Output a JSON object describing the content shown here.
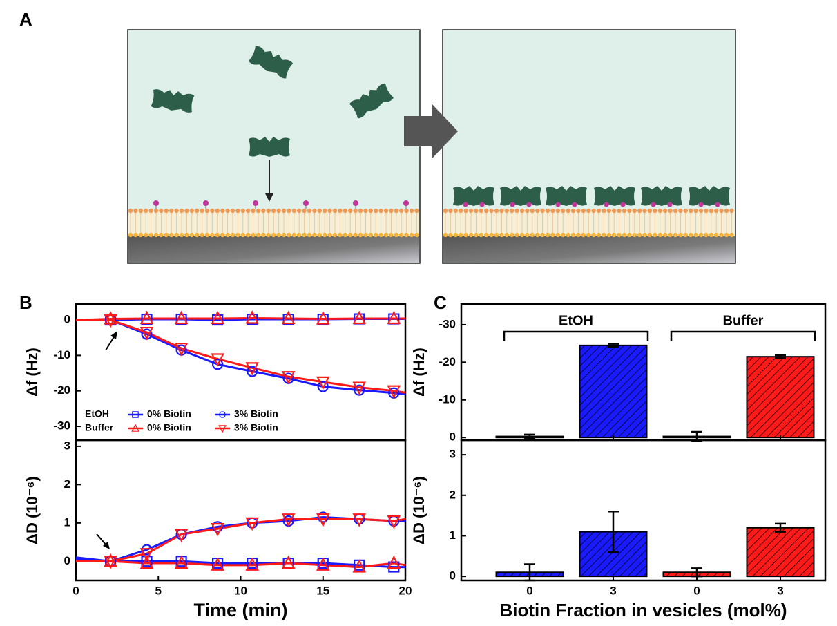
{
  "panel_labels": [
    "A",
    "B",
    "C"
  ],
  "chart_data": [
    {
      "type": "line",
      "ylabel": "Δf (Hz)",
      "xlim": [
        0,
        20
      ],
      "ylim": [
        -33.9,
        4.5
      ],
      "yticks": [
        0,
        -10,
        -20,
        -30
      ],
      "x": [
        0,
        2.1,
        4.3,
        6.4,
        8.6,
        10.7,
        12.9,
        15,
        17.2,
        19.3,
        20
      ],
      "series": [
        {
          "name": "0% Biotin",
          "group": "EtOH",
          "color": "#1a1aff",
          "marker": "square",
          "values": [
            0,
            0,
            0.2,
            0.2,
            0,
            0.2,
            0.2,
            0.2,
            0.3,
            0.3,
            0.3
          ]
        },
        {
          "name": "3% Biotin",
          "group": "EtOH",
          "color": "#1a1aff",
          "marker": "circle",
          "values": [
            0,
            0,
            -4,
            -8.5,
            -12.5,
            -14.5,
            -16.5,
            -18.8,
            -19.8,
            -20.6,
            -21
          ]
        },
        {
          "name": "0% Biotin",
          "group": "Buffer",
          "color": "#ff1a1a",
          "marker": "triangle-up",
          "values": [
            0,
            0.3,
            0.4,
            0.4,
            0.4,
            0.5,
            0.4,
            0.3,
            0.4,
            0.4,
            0.4
          ]
        },
        {
          "name": "3% Biotin",
          "group": "Buffer",
          "color": "#ff1a1a",
          "marker": "triangle-down",
          "values": [
            0,
            0,
            -3.5,
            -8,
            -11,
            -13.5,
            -16,
            -17.5,
            -19,
            -20,
            -20.5
          ]
        }
      ]
    },
    {
      "type": "line",
      "ylabel": "ΔD (10⁻⁶)",
      "xlabel": "Time (min)",
      "xlim": [
        0,
        20
      ],
      "xticks": [
        0,
        5,
        10,
        15,
        20
      ],
      "ylim": [
        -0.5,
        3.16
      ],
      "yticks": [
        0,
        1,
        2,
        3
      ],
      "x": [
        0,
        2.1,
        4.3,
        6.4,
        8.6,
        10.7,
        12.9,
        15,
        17.2,
        19.3,
        20
      ],
      "series": [
        {
          "name": "0% Biotin",
          "group": "EtOH",
          "color": "#1a1aff",
          "marker": "square",
          "values": [
            0.1,
            0,
            0,
            0,
            -0.05,
            -0.05,
            -0.05,
            -0.05,
            -0.1,
            -0.15,
            -0.15
          ]
        },
        {
          "name": "3% Biotin",
          "group": "EtOH",
          "color": "#1a1aff",
          "marker": "circle",
          "values": [
            0.05,
            0,
            0.3,
            0.7,
            0.9,
            1.0,
            1.05,
            1.15,
            1.1,
            1.05,
            1.05
          ]
        },
        {
          "name": "0% Biotin",
          "group": "Buffer",
          "color": "#ff1a1a",
          "marker": "triangle-up",
          "values": [
            0,
            0,
            -0.05,
            -0.05,
            -0.1,
            -0.1,
            -0.05,
            -0.1,
            -0.15,
            -0.05,
            -0.1
          ]
        },
        {
          "name": "3% Biotin",
          "group": "Buffer",
          "color": "#ff1a1a",
          "marker": "triangle-down",
          "values": [
            0,
            0,
            0.2,
            0.7,
            0.85,
            1.0,
            1.1,
            1.1,
            1.1,
            1.05,
            1.1
          ]
        }
      ]
    },
    {
      "type": "bar",
      "ylabel": "Δf (Hz)",
      "ylim": [
        0.7,
        -35.5
      ],
      "yticks": [
        0,
        -10,
        -20,
        -30
      ],
      "groups": [
        "EtOH",
        "Buffer"
      ],
      "values": [
        -0.3,
        -24.5,
        -0.3,
        -21.5
      ],
      "errors": [
        0.5,
        0.4,
        1.2,
        0.4
      ],
      "colors": [
        "#1a1aff",
        "#1a1aff",
        "#ff1a1a",
        "#ff1a1a"
      ]
    },
    {
      "type": "bar",
      "ylabel": "ΔD (10⁻⁶)",
      "xlabel": "Biotin Fraction in vesicles (mol%)",
      "ylim": [
        -0.1,
        3.36
      ],
      "yticks": [
        0,
        1,
        2,
        3
      ],
      "categories": [
        "0",
        "3",
        "0",
        "3"
      ],
      "values": [
        0.1,
        1.1,
        0.1,
        1.2
      ],
      "errors": [
        0.2,
        0.5,
        0.1,
        0.1
      ],
      "colors": [
        "#1a1aff",
        "#1a1aff",
        "#ff1a1a",
        "#ff1a1a"
      ]
    }
  ]
}
